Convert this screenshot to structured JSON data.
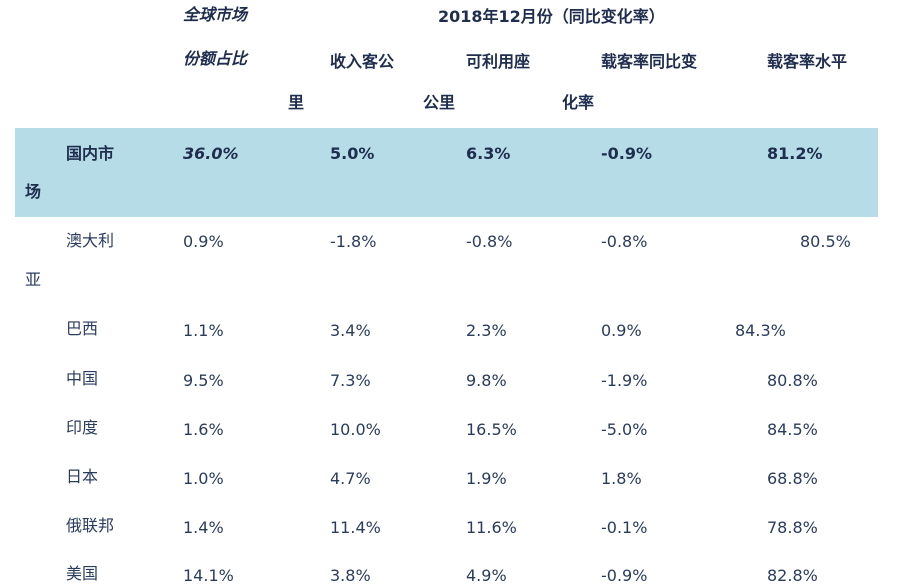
{
  "header": {
    "share_line1": "全球市场",
    "share_line2": "份额占比",
    "period": "2018年12月份（同比变化率）",
    "rpk_line1": "收入客公",
    "rpk_line2": "里",
    "ask_line1": "可利用座",
    "ask_line2": "公里",
    "plf_change_line1": "载客率同比变",
    "plf_change_line2": "化率",
    "plf_level": "载客率水平"
  },
  "rows": [
    {
      "name1": "国内市",
      "name2": "场",
      "share": "36.0%",
      "rpk": "5.0%",
      "ask": "6.3%",
      "plf_change": "-0.9%",
      "plf": "81.2%"
    },
    {
      "name1": "澳大利",
      "name2": "亚",
      "share": "0.9%",
      "rpk": "-1.8%",
      "ask": "-0.8%",
      "plf_change": "-0.8%",
      "plf": "80.5%"
    },
    {
      "name1": "巴西",
      "name2": "",
      "share": "1.1%",
      "rpk": "3.4%",
      "ask": "2.3%",
      "plf_change": "0.9%",
      "plf": "84.3%"
    },
    {
      "name1": "中国",
      "name2": "",
      "share": "9.5%",
      "rpk": "7.3%",
      "ask": "9.8%",
      "plf_change": "-1.9%",
      "plf": "80.8%"
    },
    {
      "name1": "印度",
      "name2": "",
      "share": "1.6%",
      "rpk": "10.0%",
      "ask": "16.5%",
      "plf_change": "-5.0%",
      "plf": "84.5%"
    },
    {
      "name1": "日本",
      "name2": "",
      "share": "1.0%",
      "rpk": "4.7%",
      "ask": "1.9%",
      "plf_change": "1.8%",
      "plf": "68.8%"
    },
    {
      "name1": "俄联邦",
      "name2": "",
      "share": "1.4%",
      "rpk": "11.4%",
      "ask": "11.6%",
      "plf_change": "-0.1%",
      "plf": "78.8%"
    },
    {
      "name1": "美国",
      "name2": "",
      "share": "14.1%",
      "rpk": "3.8%",
      "ask": "4.9%",
      "plf_change": "-0.9%",
      "plf": "82.8%"
    }
  ],
  "colors": {
    "band": "#b6dde7",
    "text": "#1f2d4e"
  }
}
